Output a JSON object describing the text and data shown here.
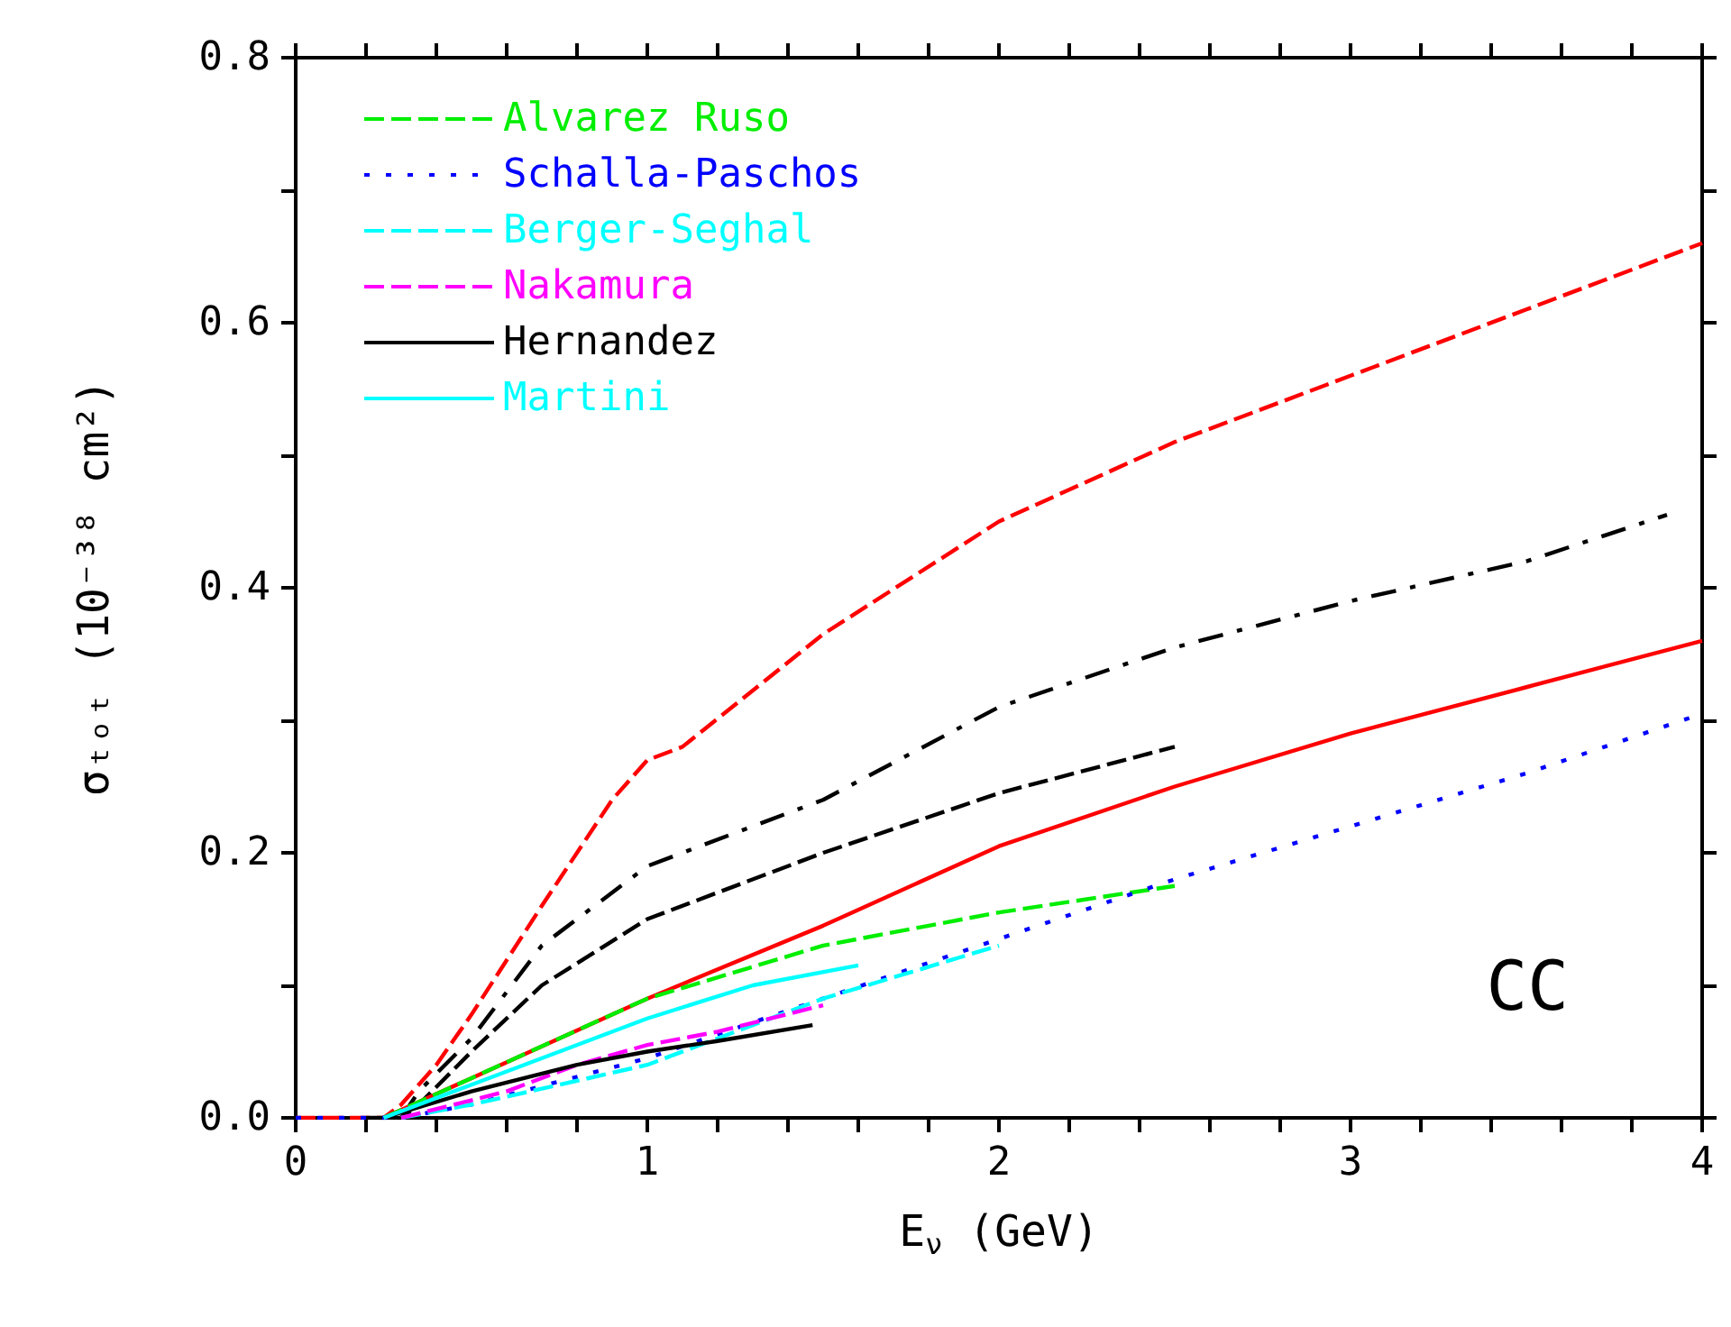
{
  "chart_data": {
    "type": "line",
    "xlabel": "E$_{ν}$ (GeV)",
    "ylabel": "σₜₒₜ (10⁻³⁸ cm²)",
    "annotations": [
      "CC"
    ],
    "xlim": [
      0,
      4
    ],
    "ylim": [
      0,
      0.8
    ],
    "xticks": [
      0,
      {
        "value": 0.2,
        "label": null
      },
      {
        "value": 0.4,
        "label": null
      },
      {
        "value": 0.6,
        "label": null
      },
      {
        "value": 0.8,
        "label": null
      },
      1,
      {
        "value": 1.2,
        "label": null
      },
      {
        "value": 1.4,
        "label": null
      },
      {
        "value": 1.6,
        "label": null
      },
      {
        "value": 1.8,
        "label": null
      },
      2,
      {
        "value": 2.2,
        "label": null
      },
      {
        "value": 2.4,
        "label": null
      },
      {
        "value": 2.6,
        "label": null
      },
      {
        "value": 2.8,
        "label": null
      },
      3,
      {
        "value": 3.2,
        "label": null
      },
      {
        "value": 3.4,
        "label": null
      },
      {
        "value": 3.6,
        "label": null
      },
      {
        "value": 3.8,
        "label": null
      },
      4
    ],
    "yticks": [
      {
        "value": 0,
        "label": "0.0"
      },
      {
        "value": 0.1,
        "label": null
      },
      {
        "value": 0.2,
        "label": "0.2"
      },
      {
        "value": 0.3,
        "label": null
      },
      {
        "value": 0.4,
        "label": "0.4"
      },
      {
        "value": 0.5,
        "label": null
      },
      {
        "value": 0.6,
        "label": "0.6"
      },
      {
        "value": 0.7,
        "label": null
      },
      {
        "value": 0.8,
        "label": "0.8"
      }
    ],
    "grid": false,
    "legend": "top left",
    "marker": "none",
    "series": [
      {
        "color": "#ff0000",
        "line_style": "dashed",
        "x": [
          0,
          0.25,
          0.3,
          0.4,
          0.5,
          0.7,
          0.9,
          1.0,
          1.1,
          1.5,
          2.0,
          2.5,
          3.0,
          3.5,
          4.0
        ],
        "values": [
          0,
          0,
          0.01,
          0.04,
          0.078,
          0.16,
          0.24,
          0.27,
          0.28,
          0.365,
          0.45,
          0.51,
          0.56,
          0.61,
          0.66
        ]
      },
      {
        "color": "#000000",
        "line_style": "dashdot",
        "x": [
          0.3,
          0.35,
          0.5,
          0.7,
          1.0,
          1.5,
          2.0,
          2.5,
          3.0,
          3.5,
          3.9
        ],
        "values": [
          0,
          0.02,
          0.06,
          0.13,
          0.19,
          0.24,
          0.31,
          0.355,
          0.39,
          0.42,
          0.455
        ]
      },
      {
        "color": "#000000",
        "line_style": "dashed",
        "x": [
          0.2,
          0.3,
          0.35,
          0.5,
          0.7,
          1.0,
          1.5,
          2.0,
          2.5
        ],
        "values": [
          0,
          0,
          0.01,
          0.05,
          0.1,
          0.15,
          0.2,
          0.245,
          0.28
        ]
      },
      {
        "color": "#ff0000",
        "line_style": "solid",
        "x": [
          0.25,
          0.5,
          1.0,
          1.5,
          2.0,
          2.5,
          3.0,
          3.5,
          4.0
        ],
        "values": [
          0,
          0.03,
          0.09,
          0.145,
          0.205,
          0.25,
          0.29,
          0.325,
          0.36
        ]
      },
      {
        "name": "Alvarez Ruso",
        "color": "#00ee00",
        "line_style": "dashed",
        "x": [
          0.25,
          0.5,
          1.0,
          1.5,
          2.0,
          2.5
        ],
        "values": [
          0,
          0.03,
          0.09,
          0.13,
          0.155,
          0.175
        ]
      },
      {
        "name": "Schalla-Paschos",
        "color": "#0000ff",
        "line_style": "dotted",
        "x": [
          0,
          0.3,
          0.5,
          1.0,
          1.5,
          2.0,
          2.5,
          3.0,
          3.5,
          4.0
        ],
        "values": [
          0,
          0,
          0.01,
          0.045,
          0.09,
          0.135,
          0.18,
          0.22,
          0.26,
          0.305
        ]
      },
      {
        "name": "Berger-Seghal",
        "color": "#00ffff",
        "line_style": "dashed",
        "x": [
          0.3,
          0.5,
          1.0,
          1.5,
          2.0
        ],
        "values": [
          0,
          0.01,
          0.04,
          0.09,
          0.13
        ]
      },
      {
        "name": "Nakamura",
        "color": "#ff00ff",
        "line_style": "dashed",
        "x": [
          0.3,
          0.6,
          0.8,
          1.0,
          1.2,
          1.5
        ],
        "values": [
          0,
          0.02,
          0.04,
          0.055,
          0.065,
          0.085
        ]
      },
      {
        "name": "Hernandez",
        "color": "#000000",
        "line_style": "solid",
        "x": [
          0.25,
          0.5,
          0.8,
          1.0,
          1.2,
          1.47
        ],
        "values": [
          0,
          0.02,
          0.04,
          0.05,
          0.058,
          0.07
        ]
      },
      {
        "name": "Martini",
        "color": "#00ffff",
        "line_style": "solid",
        "x": [
          0.25,
          0.5,
          1.0,
          1.3,
          1.6
        ],
        "values": [
          0,
          0.025,
          0.075,
          0.1,
          0.115
        ]
      }
    ]
  }
}
